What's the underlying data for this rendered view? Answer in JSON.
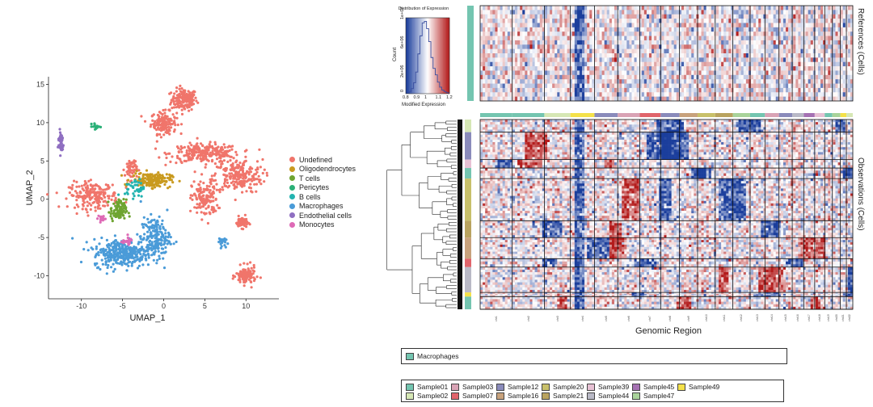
{
  "chart_data": [
    {
      "type": "scatter",
      "xlabel": "UMAP_1",
      "ylabel": "UMAP_2",
      "xlim": [
        -14,
        14
      ],
      "ylim": [
        -13,
        16
      ],
      "xticks": [
        "-10",
        "-5",
        "0",
        "5",
        "10"
      ],
      "yticks": [
        "15",
        "10",
        "5",
        "0",
        "-5",
        "-10"
      ],
      "legend_position": "right",
      "series": [
        {
          "name": "Undefined",
          "color": "#F0756B"
        },
        {
          "name": "Oligodendrocytes",
          "color": "#C99A1F"
        },
        {
          "name": "T cells",
          "color": "#6EA431"
        },
        {
          "name": "Pericytes",
          "color": "#2BB077"
        },
        {
          "name": "B cells",
          "color": "#22B3B0"
        },
        {
          "name": "Macrophages",
          "color": "#4A9BD8"
        },
        {
          "name": "Endothelial cells",
          "color": "#8F6FC1"
        },
        {
          "name": "Monocytes",
          "color": "#DE6AB6"
        }
      ],
      "clusters": [
        {
          "label": "Undefined",
          "cx": 2.5,
          "cy": 13,
          "sx": 1.3,
          "sy": 1.2,
          "n": 160
        },
        {
          "label": "Undefined",
          "cx": 0,
          "cy": 10,
          "sx": 1.3,
          "sy": 1.2,
          "n": 150
        },
        {
          "label": "Undefined",
          "cx": 5,
          "cy": 6,
          "sx": 3.5,
          "sy": 1.0,
          "n": 260
        },
        {
          "label": "Undefined",
          "cx": 9,
          "cy": 3,
          "sx": 2.5,
          "sy": 1.8,
          "n": 220
        },
        {
          "label": "Undefined",
          "cx": 5,
          "cy": 0,
          "sx": 1.3,
          "sy": 2.0,
          "n": 140
        },
        {
          "label": "Undefined",
          "cx": -8.5,
          "cy": 0.5,
          "sx": 2.5,
          "sy": 1.4,
          "n": 200
        },
        {
          "label": "Undefined",
          "cx": -4,
          "cy": 4,
          "sx": 0.6,
          "sy": 1.2,
          "n": 60
        },
        {
          "label": "Undefined",
          "cx": 9.5,
          "cy": -3,
          "sx": 0.6,
          "sy": 0.6,
          "n": 60
        },
        {
          "label": "Undefined",
          "cx": 10,
          "cy": -10,
          "sx": 1.0,
          "sy": 1.0,
          "n": 110
        },
        {
          "label": "Oligodendrocytes",
          "cx": -1.5,
          "cy": 2.5,
          "sx": 2.0,
          "sy": 0.8,
          "n": 160
        },
        {
          "label": "T cells",
          "cx": -5.5,
          "cy": -1.5,
          "sx": 0.8,
          "sy": 1.2,
          "n": 90
        },
        {
          "label": "Pericytes",
          "cx": -8.2,
          "cy": 9.5,
          "sx": 0.4,
          "sy": 0.3,
          "n": 18
        },
        {
          "label": "B cells",
          "cx": -3.5,
          "cy": 1.5,
          "sx": 1.0,
          "sy": 1.0,
          "n": 40
        },
        {
          "label": "Macrophages",
          "cx": -5,
          "cy": -7,
          "sx": 3.0,
          "sy": 1.5,
          "n": 330
        },
        {
          "label": "Macrophages",
          "cx": -1,
          "cy": -5,
          "sx": 1.5,
          "sy": 2.2,
          "n": 180
        },
        {
          "label": "Macrophages",
          "cx": 7,
          "cy": -5.5,
          "sx": 0.4,
          "sy": 0.5,
          "n": 25
        },
        {
          "label": "Endothelial cells",
          "cx": -12.5,
          "cy": 7.5,
          "sx": 0.3,
          "sy": 1.3,
          "n": 45
        },
        {
          "label": "Monocytes",
          "cx": -7.5,
          "cy": -2.5,
          "sx": 0.4,
          "sy": 0.4,
          "n": 20
        },
        {
          "label": "Monocytes",
          "cx": -4.5,
          "cy": -5.5,
          "sx": 0.6,
          "sy": 0.4,
          "n": 20
        }
      ]
    },
    {
      "type": "bar",
      "title": "Distribution of Expression",
      "xlabel": "Modified Expression",
      "ylabel": "Count",
      "xticks": [
        "0.8",
        "0.9",
        "1",
        "1.1",
        "1.2"
      ],
      "yticks": [
        "0",
        "2e+06",
        "6e+06",
        "1e+07"
      ],
      "xlim": [
        0.8,
        1.2
      ],
      "ylim": [
        0,
        10500000
      ],
      "x": [
        0.84,
        0.86,
        0.88,
        0.9,
        0.92,
        0.94,
        0.96,
        0.98,
        1.0,
        1.02,
        1.04,
        1.06,
        1.08,
        1.1,
        1.12,
        1.14,
        1.16,
        1.18
      ],
      "values": [
        300000,
        700000,
        1500000,
        3000000,
        5500000,
        8000000,
        9800000,
        10000000,
        9000000,
        7200000,
        5000000,
        3500000,
        2600000,
        1600000,
        900000,
        500000,
        300000,
        150000
      ]
    },
    {
      "type": "heatmap",
      "xlabel": "Genomic Region",
      "ylabel_top": "References (Cells)",
      "ylabel_bottom": "Observations (Cells)",
      "colormap": {
        "low": "#1B3E9C",
        "mid": "#FFFFFF",
        "high": "#B31B1B"
      },
      "value_range": [
        0.8,
        1.2
      ],
      "chromosome_labels": [
        "chr1",
        "chr2",
        "chr3",
        "chr4",
        "chr5",
        "chr6",
        "chr7",
        "chr8",
        "chr9",
        "chr10",
        "chr11",
        "chr12",
        "chr13",
        "chr14",
        "chr15",
        "chr16",
        "chr17",
        "chr18",
        "chr19",
        "chr20",
        "chr21",
        "chr22"
      ],
      "chromosome_fractions": [
        0.08,
        0.08,
        0.065,
        0.06,
        0.058,
        0.055,
        0.052,
        0.047,
        0.045,
        0.044,
        0.044,
        0.043,
        0.037,
        0.035,
        0.033,
        0.029,
        0.027,
        0.025,
        0.019,
        0.02,
        0.015,
        0.016
      ],
      "reference_group": "Macrophages",
      "observation_groups": [
        {
          "sample": "Sample02",
          "fraction": 0.06
        },
        {
          "sample": "Sample12",
          "fraction": 0.13
        },
        {
          "sample": "Sample39",
          "fraction": 0.04
        },
        {
          "sample": "Sample01",
          "fraction": 0.05
        },
        {
          "sample": "Sample20",
          "fraction": 0.2
        },
        {
          "sample": "Sample21",
          "fraction": 0.08
        },
        {
          "sample": "Sample16",
          "fraction": 0.1
        },
        {
          "sample": "Sample07",
          "fraction": 0.04
        },
        {
          "sample": "Sample44",
          "fraction": 0.12
        },
        {
          "sample": "Sample49",
          "fraction": 0.02
        },
        {
          "sample": "Sample01",
          "fraction": 0.06
        }
      ]
    }
  ],
  "reference_key": {
    "items": [
      {
        "label": "Macrophages",
        "color": "#74C5B0"
      }
    ]
  },
  "sample_key": {
    "items": [
      {
        "label": "Sample01",
        "color": "#74C5B0"
      },
      {
        "label": "Sample02",
        "color": "#D6E7B5"
      },
      {
        "label": "Sample03",
        "color": "#D9A3B5"
      },
      {
        "label": "Sample07",
        "color": "#E0646B"
      },
      {
        "label": "Sample12",
        "color": "#8A8BBB"
      },
      {
        "label": "Sample16",
        "color": "#C8A27C"
      },
      {
        "label": "Sample20",
        "color": "#C8C06A"
      },
      {
        "label": "Sample21",
        "color": "#B9A35F"
      },
      {
        "label": "Sample39",
        "color": "#E7C1D4"
      },
      {
        "label": "Sample44",
        "color": "#B9B9C6"
      },
      {
        "label": "Sample45",
        "color": "#A571B3"
      },
      {
        "label": "Sample47",
        "color": "#A9D39A"
      },
      {
        "label": "Sample49",
        "color": "#F4E14A"
      }
    ]
  }
}
